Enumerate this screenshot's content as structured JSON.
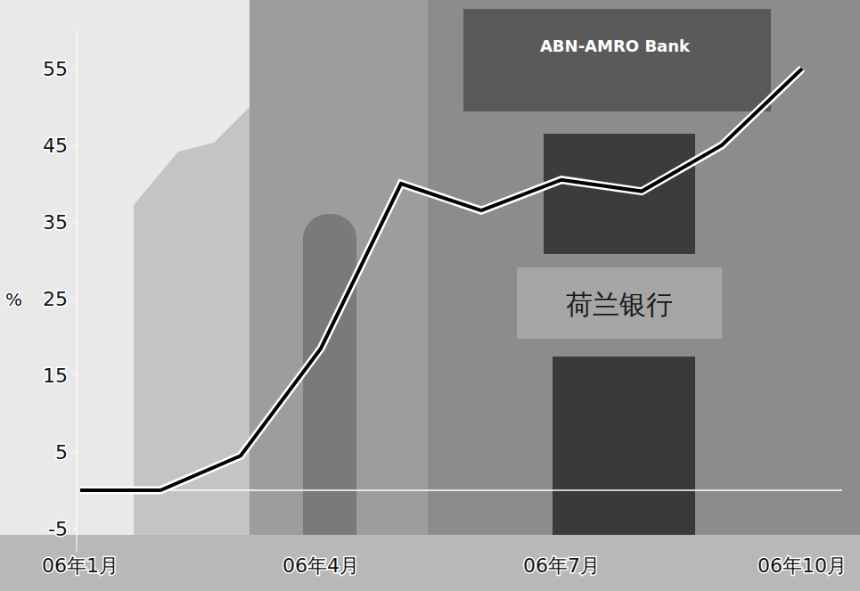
{
  "chart_data": {
    "type": "line",
    "y_label": "%",
    "categories": [
      "06年1月",
      null,
      null,
      "06年4月",
      null,
      null,
      "06年7月",
      null,
      null,
      "06年10月"
    ],
    "values": [
      0,
      0,
      4.5,
      18.5,
      40,
      36.5,
      40.5,
      39,
      45,
      55
    ],
    "color": "#000000",
    "ylim": [
      -8,
      60
    ],
    "yticks": [
      -5,
      5,
      15,
      25,
      35,
      45,
      55
    ],
    "grid": false,
    "annotations": [
      "ABN-AMRO Bank",
      "荷兰银行"
    ]
  }
}
